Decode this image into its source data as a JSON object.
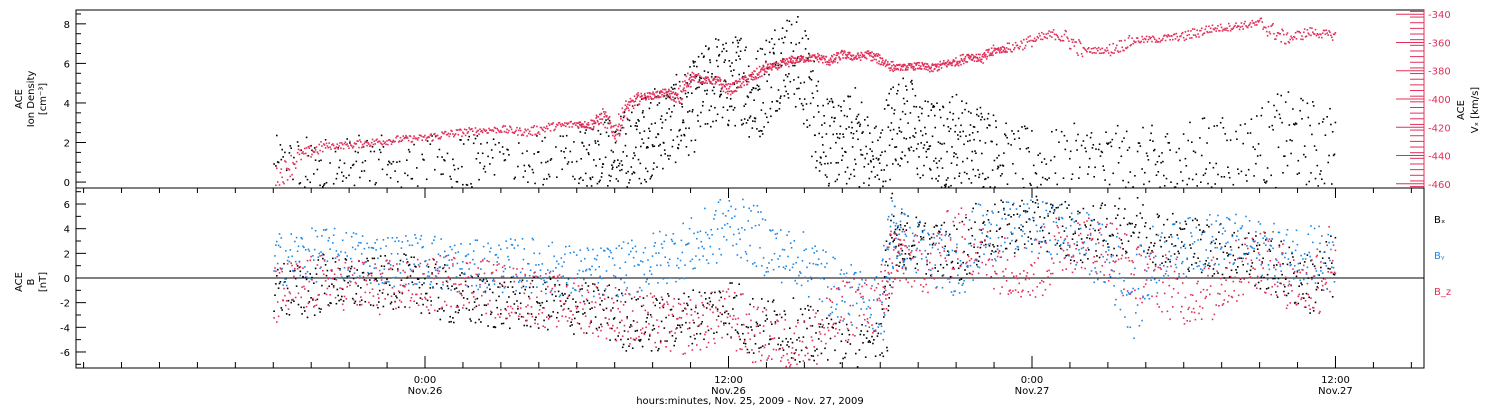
{
  "chart_data": [
    {
      "type": "scatter",
      "panel": "top",
      "left_axis": {
        "label_lines": [
          "ACE",
          "Ion Density"
        ],
        "unit": "[cm⁻³]",
        "ylim": [
          -0.3,
          8.7
        ],
        "ticks": [
          0,
          2,
          4,
          6,
          8
        ]
      },
      "right_axis": {
        "label_lines": [
          "ACE",
          "Vₓ [km/s]"
        ],
        "ylim": [
          -463,
          -337
        ],
        "ticks": [
          -340,
          -360,
          -380,
          -400,
          -420,
          -440,
          -460
        ],
        "color": "#e0305a"
      },
      "series": [
        {
          "axis": "left",
          "color": "#000000",
          "x": [
            -6,
            -5,
            -4,
            -3,
            -2,
            -1,
            0,
            1,
            2,
            3,
            4,
            5,
            6,
            6.5,
            7,
            7.5,
            8,
            8.5,
            9,
            9.5,
            10,
            10.5,
            11,
            11.5,
            12,
            12.5,
            13,
            13.5,
            14,
            14.5,
            15,
            15.5,
            16,
            16.5,
            17,
            17.5,
            18,
            18.5,
            19,
            19.5,
            20,
            20.5,
            21,
            21.5,
            22,
            22.5,
            23,
            24,
            25,
            26,
            27,
            28,
            29,
            30,
            31,
            32,
            33,
            34,
            35,
            36
          ],
          "y": [
            0.3,
            0.3,
            0.3,
            0.3,
            0.3,
            0.3,
            0.3,
            0.35,
            0.3,
            0.3,
            0.3,
            0.3,
            0.35,
            1.2,
            1.3,
            0.8,
            1.6,
            2.1,
            2.6,
            2.9,
            3.3,
            3.7,
            4.5,
            5.3,
            4.8,
            5.5,
            4.2,
            5.3,
            6.2,
            6.5,
            5.2,
            3.1,
            2.1,
            1.9,
            2.6,
            1.0,
            0.9,
            2.9,
            3.3,
            2.2,
            2.1,
            1.8,
            2.5,
            1.4,
            2.0,
            1.2,
            0.8,
            0.7,
            0.55,
            0.9,
            0.8,
            0.6,
            0.8,
            0.65,
            1.3,
            1.0,
            1.6,
            2.4,
            2.0,
            1.5
          ]
        },
        {
          "axis": "right",
          "color": "#e0305a",
          "x": [
            -6,
            -5,
            -4,
            -3,
            -2,
            -1,
            0,
            1,
            2,
            3,
            4,
            5,
            6,
            6.5,
            7,
            7.5,
            8,
            8.5,
            9,
            9.5,
            10,
            10.5,
            11,
            11.5,
            12,
            12.5,
            13,
            13.5,
            14,
            14.5,
            15,
            15.5,
            16,
            16.5,
            17,
            17.5,
            18,
            18.5,
            19,
            19.5,
            20,
            20.5,
            21,
            21.5,
            22,
            22.5,
            23,
            24,
            25,
            26,
            27,
            28,
            29,
            30,
            31,
            32,
            33,
            34,
            35,
            36
          ],
          "y": [
            -458,
            -440,
            -433,
            -432,
            -430,
            -428,
            -427,
            -424,
            -422,
            -421,
            -423,
            -419,
            -417,
            -418,
            -412,
            -423,
            -405,
            -398,
            -397,
            -395,
            -399,
            -383,
            -386,
            -387,
            -393,
            -388,
            -383,
            -377,
            -376,
            -372,
            -371,
            -370,
            -373,
            -368,
            -370,
            -368,
            -372,
            -377,
            -377,
            -376,
            -378,
            -375,
            -373,
            -369,
            -371,
            -365,
            -364,
            -358,
            -353,
            -365,
            -365,
            -358,
            -357,
            -355,
            -350,
            -348,
            -346,
            -357,
            -352,
            -355
          ]
        }
      ]
    },
    {
      "type": "scatter",
      "panel": "bottom",
      "left_axis": {
        "label_lines": [
          "ACE",
          "B",
          "[nT]"
        ],
        "ylim": [
          -7.3,
          7.3
        ],
        "ticks": [
          -6,
          -4,
          -2,
          0,
          2,
          4,
          6
        ]
      },
      "zero_line": true,
      "legend": [
        {
          "text": "Bₓ",
          "color": "#000000"
        },
        {
          "text": "Bᵧ",
          "color": "#1e88e5"
        },
        {
          "text": "B_z",
          "color": "#e0305a"
        }
      ],
      "series": [
        {
          "name": "Bx",
          "color": "#000000",
          "x": [
            -6,
            -5,
            -4,
            -3,
            -2,
            -1,
            0,
            1,
            2,
            3,
            4,
            5,
            6,
            7,
            8,
            9,
            10,
            11,
            12,
            13,
            14,
            15,
            16,
            17,
            18,
            18.5,
            19,
            20,
            21,
            22,
            23,
            24,
            25,
            26,
            27,
            28,
            29,
            30,
            31,
            32,
            33,
            34,
            35,
            36
          ],
          "y": [
            -0.5,
            -1.2,
            -0.3,
            -0.5,
            -0.4,
            -0.2,
            -0.6,
            -1.5,
            -1.8,
            -2.0,
            -2.0,
            -2.1,
            -2.4,
            -2.5,
            -3.5,
            -3.8,
            -3.2,
            -2.8,
            -2.2,
            -3.9,
            -3.5,
            -4.5,
            -5.5,
            -6.5,
            -5.0,
            3.5,
            3.0,
            2.5,
            2.2,
            3.8,
            4.2,
            4.5,
            4.3,
            3.5,
            4.0,
            4.5,
            3.5,
            3.0,
            2.5,
            2.0,
            1.5,
            0.5,
            -0.5,
            1.2
          ]
        },
        {
          "name": "By",
          "color": "#1e88e5",
          "x": [
            -6,
            -5,
            -4,
            -3,
            -2,
            -1,
            0,
            1,
            2,
            3,
            4,
            5,
            6,
            7,
            8,
            9,
            10,
            11,
            12,
            13,
            14,
            15,
            16,
            17,
            18,
            18.5,
            19,
            20,
            21,
            22,
            23,
            24,
            25,
            26,
            27,
            28,
            29,
            30,
            31,
            32,
            33,
            34,
            35,
            36
          ],
          "y": [
            1.5,
            1.8,
            2.0,
            1.8,
            1.6,
            1.5,
            1.6,
            1.0,
            1.0,
            1.0,
            1.2,
            0.8,
            0.5,
            0.5,
            0.8,
            1.5,
            2.2,
            3.0,
            4.5,
            3.5,
            2.0,
            1.5,
            -0.5,
            -1.5,
            -2.0,
            4.0,
            3.0,
            2.0,
            1.0,
            3.5,
            4.0,
            4.2,
            3.8,
            3.0,
            1.5,
            -1.5,
            2.0,
            2.5,
            3.2,
            3.0,
            2.5,
            1.8,
            2.5,
            0.5
          ]
        },
        {
          "name": "Bz",
          "color": "#e0305a",
          "x": [
            -6,
            -5,
            -4,
            -3,
            -2,
            -1,
            0,
            1,
            2,
            3,
            4,
            5,
            6,
            7,
            8,
            9,
            10,
            11,
            12,
            13,
            14,
            15,
            16,
            17,
            18,
            18.5,
            19,
            20,
            21,
            22,
            23,
            24,
            25,
            26,
            27,
            28,
            29,
            30,
            31,
            32,
            33,
            34,
            35,
            36
          ],
          "y": [
            -1.5,
            -0.6,
            -0.2,
            -0.4,
            -0.8,
            -0.5,
            -0.6,
            -0.2,
            -0.3,
            -1.0,
            -1.2,
            -1.8,
            -2.0,
            -2.5,
            -3.0,
            -3.5,
            -4.0,
            -3.5,
            -3.0,
            -4.5,
            -5.0,
            -5.5,
            -3.5,
            -2.0,
            -2.5,
            2.0,
            1.5,
            1.0,
            3.5,
            2.0,
            1.0,
            0.5,
            2.5,
            3.0,
            2.5,
            0.5,
            0.0,
            -1.5,
            -1.0,
            0.5,
            2.0,
            0.0,
            -0.8,
            2.5
          ]
        }
      ]
    }
  ],
  "x_axis": {
    "xlim": [
      -13.8,
      39.5
    ],
    "major_ticks": [
      {
        "x": 0,
        "time": "0:00",
        "date": "Nov.26"
      },
      {
        "x": 12,
        "time": "12:00",
        "date": "Nov.26"
      },
      {
        "x": 24,
        "time": "0:00",
        "date": "Nov.27"
      },
      {
        "x": 36,
        "time": "12:00",
        "date": "Nov.27"
      }
    ],
    "minor_step": 1.5,
    "label": "hours:minutes, Nov. 25, 2009 - Nov. 27, 2009"
  }
}
